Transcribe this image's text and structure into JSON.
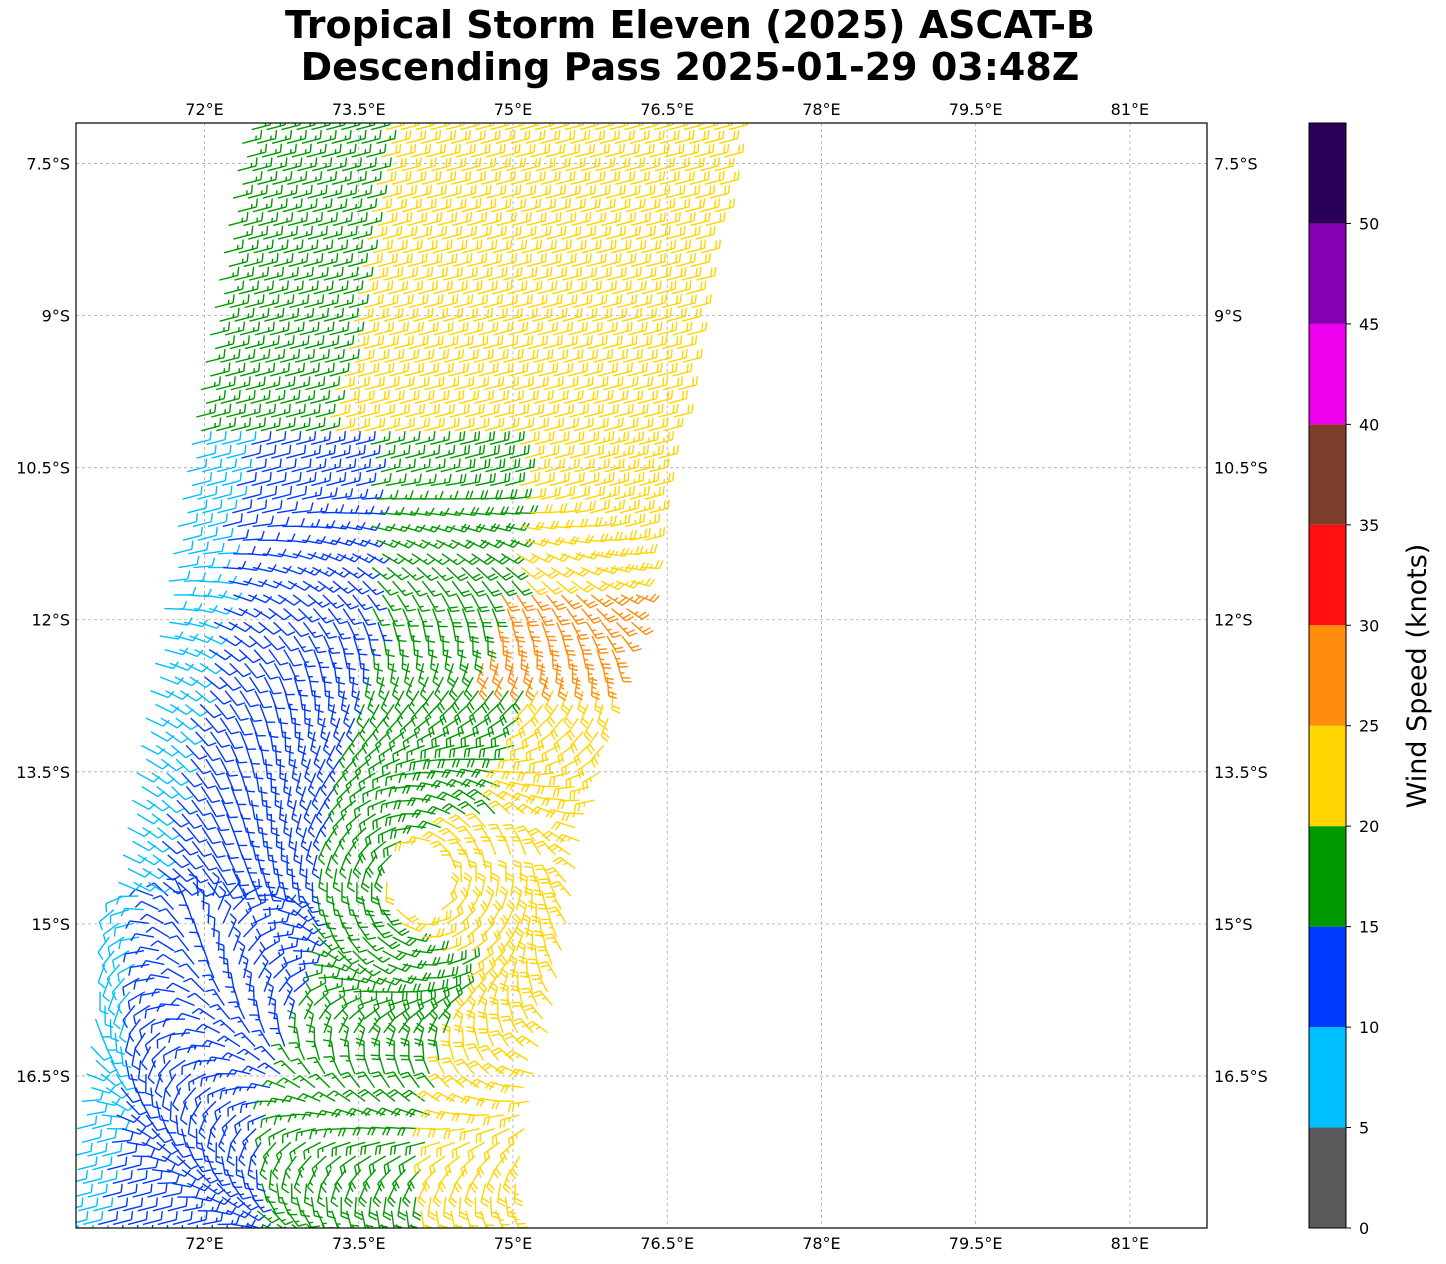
{
  "title": {
    "line1": "Tropical Storm Eleven (2025) ASCAT-B",
    "line2": "Descending Pass 2025-01-29 03:48Z"
  },
  "map": {
    "lon_range": [
      70.75,
      81.75
    ],
    "lat_range": [
      -18.0,
      -7.1
    ],
    "lon_ticks": [
      {
        "value": 72.0,
        "label": "72°E"
      },
      {
        "value": 73.5,
        "label": "73.5°E"
      },
      {
        "value": 75.0,
        "label": "75°E"
      },
      {
        "value": 76.5,
        "label": "76.5°E"
      },
      {
        "value": 78.0,
        "label": "78°E"
      },
      {
        "value": 79.5,
        "label": "79.5°E"
      },
      {
        "value": 81.0,
        "label": "81°E"
      }
    ],
    "lat_ticks": [
      {
        "value": -7.5,
        "label": "7.5°S"
      },
      {
        "value": -9.0,
        "label": "9°S"
      },
      {
        "value": -10.5,
        "label": "10.5°S"
      },
      {
        "value": -12.0,
        "label": "12°S"
      },
      {
        "value": -13.5,
        "label": "13.5°S"
      },
      {
        "value": -15.0,
        "label": "15°S"
      },
      {
        "value": -16.5,
        "label": "16.5°S"
      }
    ],
    "gridlines": true,
    "grid_color": "#aaaaaa"
  },
  "colorbar": {
    "label": "Wind Speed (knots)",
    "bounds": [
      0,
      5,
      10,
      15,
      20,
      25,
      30,
      35,
      40,
      45,
      50,
      55
    ],
    "colors": [
      "#595959",
      "#00bfff",
      "#0039ff",
      "#009900",
      "#ffd400",
      "#ff8c0a",
      "#ff0f0f",
      "#7f3d2b",
      "#ee00ee",
      "#8500b3",
      "#2b0059"
    ],
    "tick_labels": [
      "0",
      "5",
      "10",
      "15",
      "20",
      "25",
      "30",
      "35",
      "40",
      "45",
      "50"
    ]
  },
  "wind_field": {
    "type": "wind barbs",
    "instrument": "ASCAT-B",
    "circulation_center_lon": 74.1,
    "circulation_center_lat": -14.6
  }
}
